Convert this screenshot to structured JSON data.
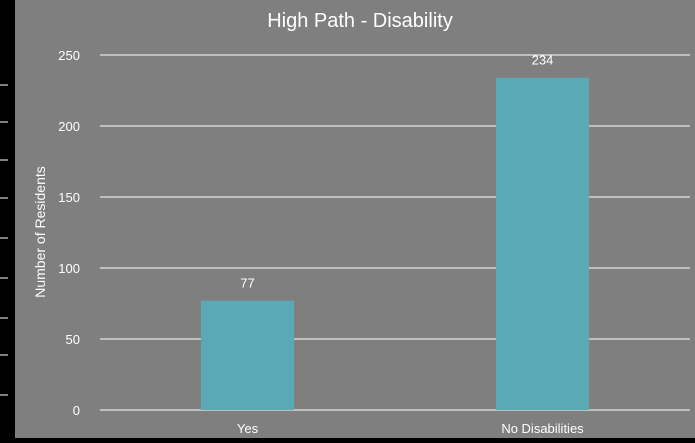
{
  "chart_data": {
    "type": "bar",
    "title": "High Path - Disability",
    "xlabel": "",
    "ylabel": "Number of Residents",
    "categories": [
      "Yes",
      "No Disabilities"
    ],
    "values": [
      77,
      234
    ],
    "data_labels": [
      "77",
      "234"
    ],
    "ylim": [
      0,
      250
    ],
    "yticks": [
      0,
      50,
      100,
      150,
      200,
      250
    ],
    "ytick_labels": [
      "0",
      "50",
      "100",
      "150",
      "200",
      "250"
    ],
    "grid": true,
    "legend": "none",
    "bar_color": "#5aa9b5",
    "background_color": "#7f7f7f"
  }
}
